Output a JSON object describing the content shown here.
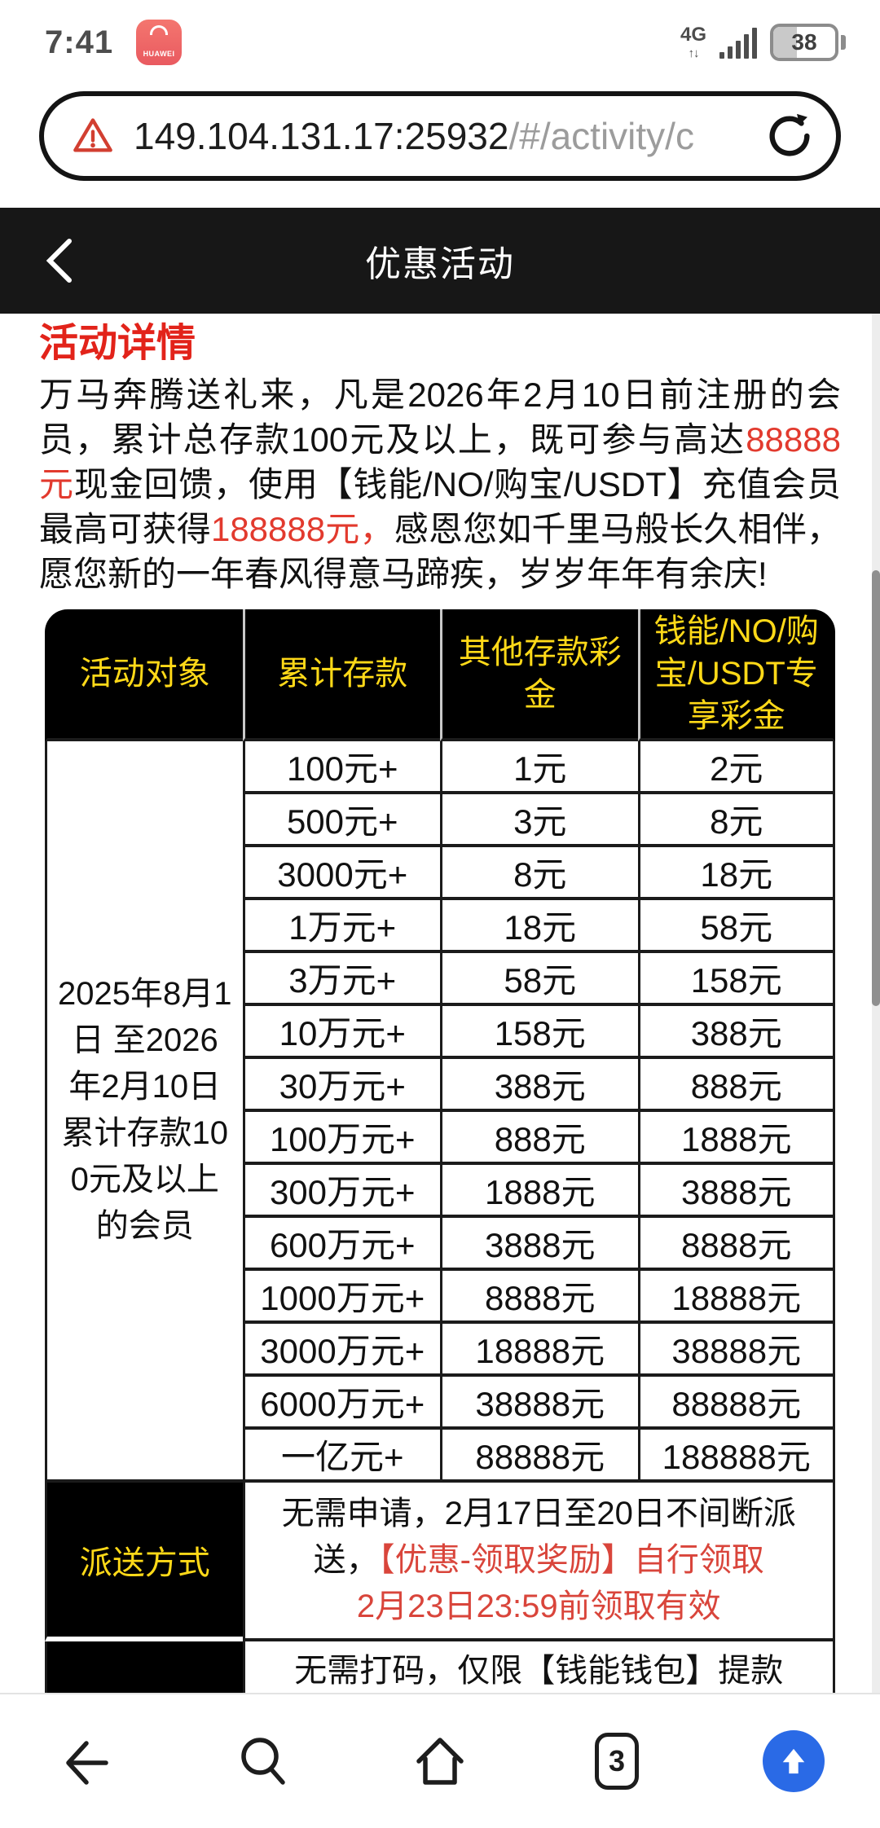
{
  "status_bar": {
    "time": "7:41",
    "app_icon_label": "HUAWEI",
    "network": "4G",
    "battery_percent": "38"
  },
  "url_bar": {
    "host": "149.104.131.17:25932",
    "path": "/#/activity/c"
  },
  "page_header": {
    "title": "优惠活动"
  },
  "activity": {
    "section_title": "活动详情",
    "intro_part1": "万马奔腾送礼来，凡是2026年2月10日前注册的会员，累计总存款100元及以上，既可参与高达",
    "intro_highlight1": "88888元",
    "intro_part2": "现金回馈，使用【钱能/NO/购宝/USDT】充值会员最高可获得",
    "intro_highlight2": "188888元，",
    "intro_part3": "感恩您如千里马般长久相伴，愿您新的一年春风得意马蹄疾，岁岁年年有余庆!"
  },
  "table": {
    "headers": [
      "活动对象",
      "累计存款",
      "其他存款彩金",
      "钱能/NO/购宝/USDT专享彩金"
    ],
    "audience": "2025年8月1日 至2026年2月10日累计存款100元及以上的会员",
    "rows": [
      [
        "100元+",
        "1元",
        "2元"
      ],
      [
        "500元+",
        "3元",
        "8元"
      ],
      [
        "3000元+",
        "8元",
        "18元"
      ],
      [
        "1万元+",
        "18元",
        "58元"
      ],
      [
        "3万元+",
        "58元",
        "158元"
      ],
      [
        "10万元+",
        "158元",
        "388元"
      ],
      [
        "30万元+",
        "388元",
        "888元"
      ],
      [
        "100万元+",
        "888元",
        "1888元"
      ],
      [
        "300万元+",
        "1888元",
        "3888元"
      ],
      [
        "600万元+",
        "3888元",
        "8888元"
      ],
      [
        "1000万元+",
        "8888元",
        "18888元"
      ],
      [
        "3000万元+",
        "18888元",
        "38888元"
      ],
      [
        "6000万元+",
        "38888元",
        "88888元"
      ],
      [
        "一亿元+",
        "88888元",
        "188888元"
      ]
    ],
    "delivery_label": "派送方式",
    "delivery_text": "无需申请，2月17日至20日不间断派送，",
    "delivery_red_line1": "【优惠-领取奖励】自行领取",
    "delivery_red_line2": "2月23日23:59前领取有效",
    "withdraw_text": "无需打码，仅限【钱能钱包】提款"
  },
  "nav_bar": {
    "tab_count": "3"
  },
  "icons": {
    "url_warning": "warning-triangle-icon",
    "url_refresh": "refresh-icon",
    "header_back": "chevron-left-icon",
    "nav": [
      "back-arrow-icon",
      "search-icon",
      "home-icon",
      "tabs-icon",
      "scroll-top-icon"
    ]
  },
  "colors": {
    "accent_red": "#e2231a",
    "highlight_red": "#e23a2e",
    "table_gold": "#ffd918",
    "nav_blue": "#2a6ae6"
  }
}
